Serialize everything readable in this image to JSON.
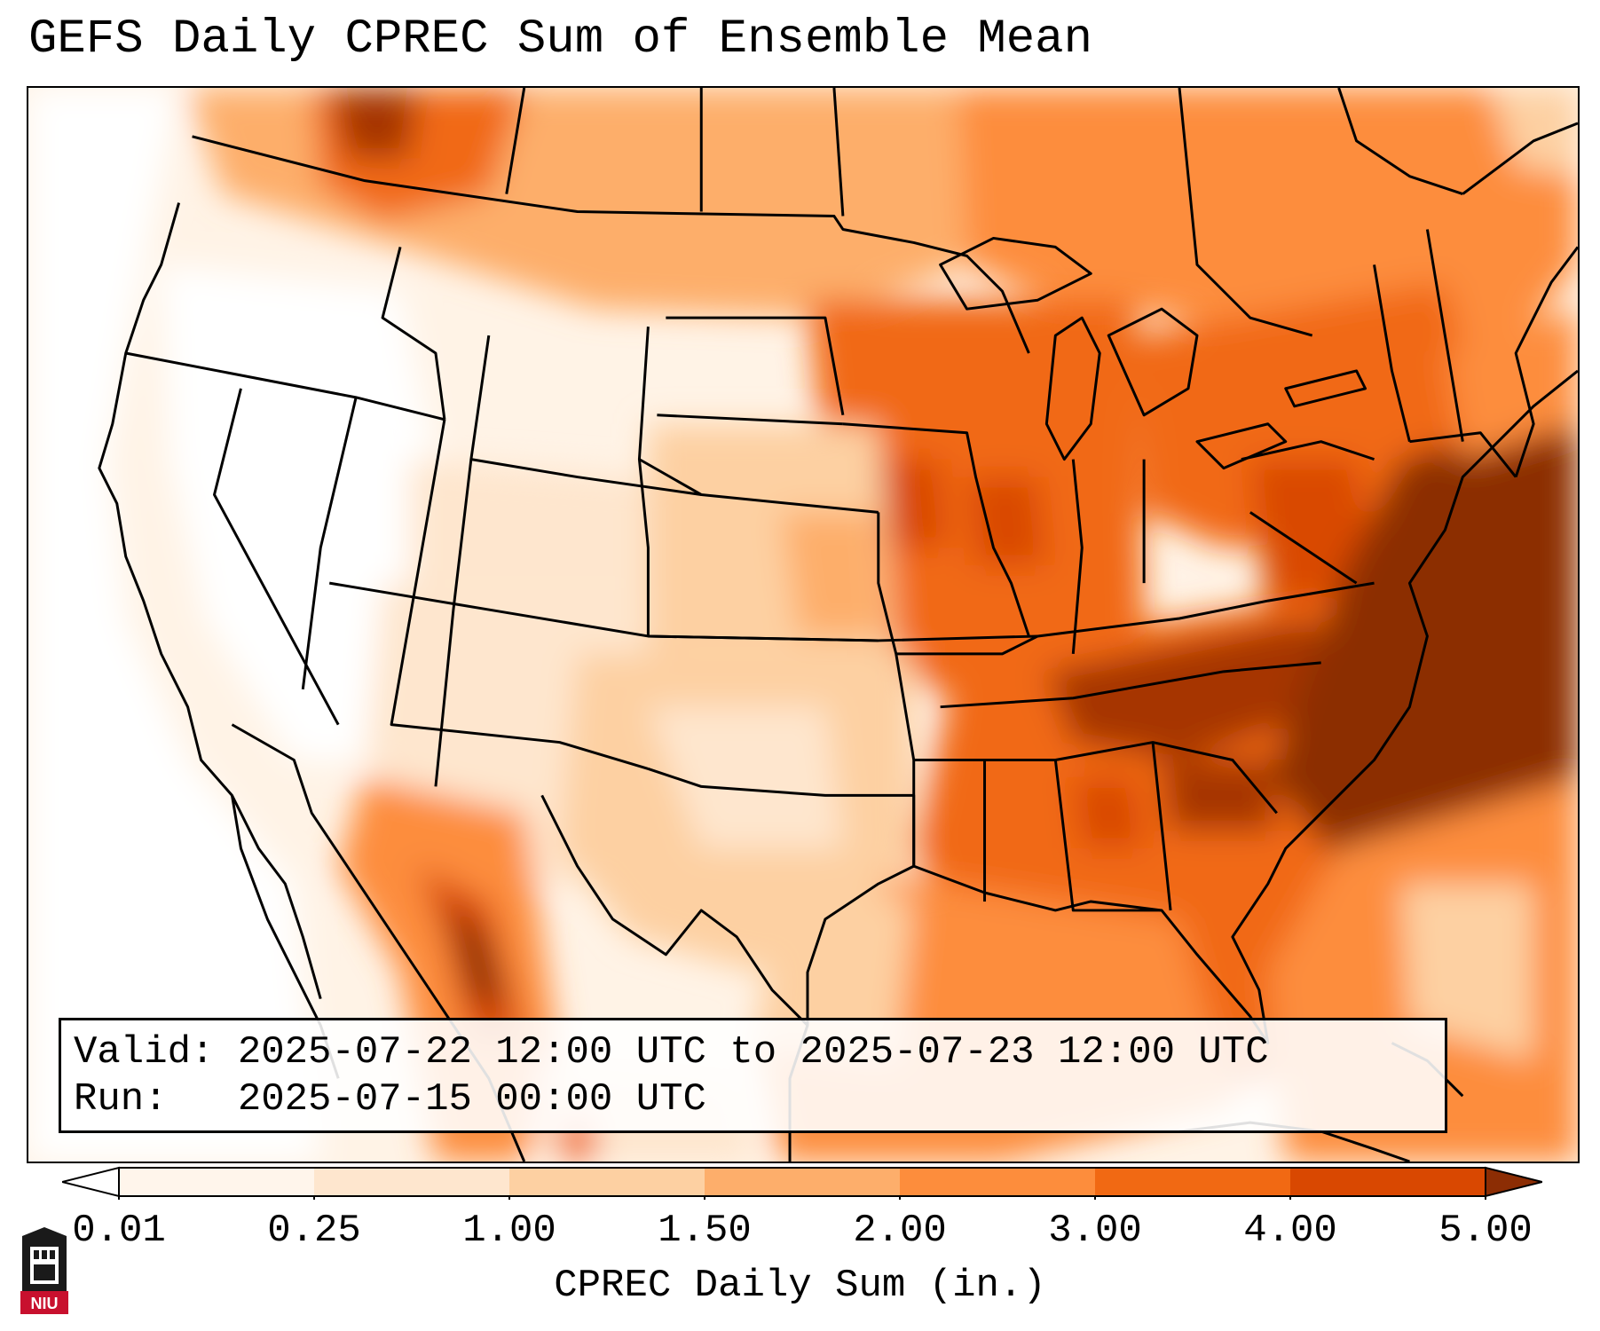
{
  "title": "GEFS Daily CPREC Sum of Ensemble Mean",
  "info": {
    "valid_line": "Valid: 2025-07-22 12:00 UTC to 2025-07-23 12:00 UTC",
    "run_line": "Run:   2025-07-15 00:00 UTC"
  },
  "colorbar": {
    "label": "CPREC Daily Sum (in.)",
    "ticks": [
      "0.01",
      "0.25",
      "1.00",
      "1.50",
      "2.00",
      "3.00",
      "4.00",
      "5.00"
    ],
    "colors": [
      "#fff5eb",
      "#fee6ce",
      "#fdd0a2",
      "#fdae6b",
      "#fd8d3c",
      "#f16913",
      "#d94801",
      "#8c2d04"
    ]
  },
  "logo": {
    "text": "NIU",
    "color": "#c8102e"
  }
}
